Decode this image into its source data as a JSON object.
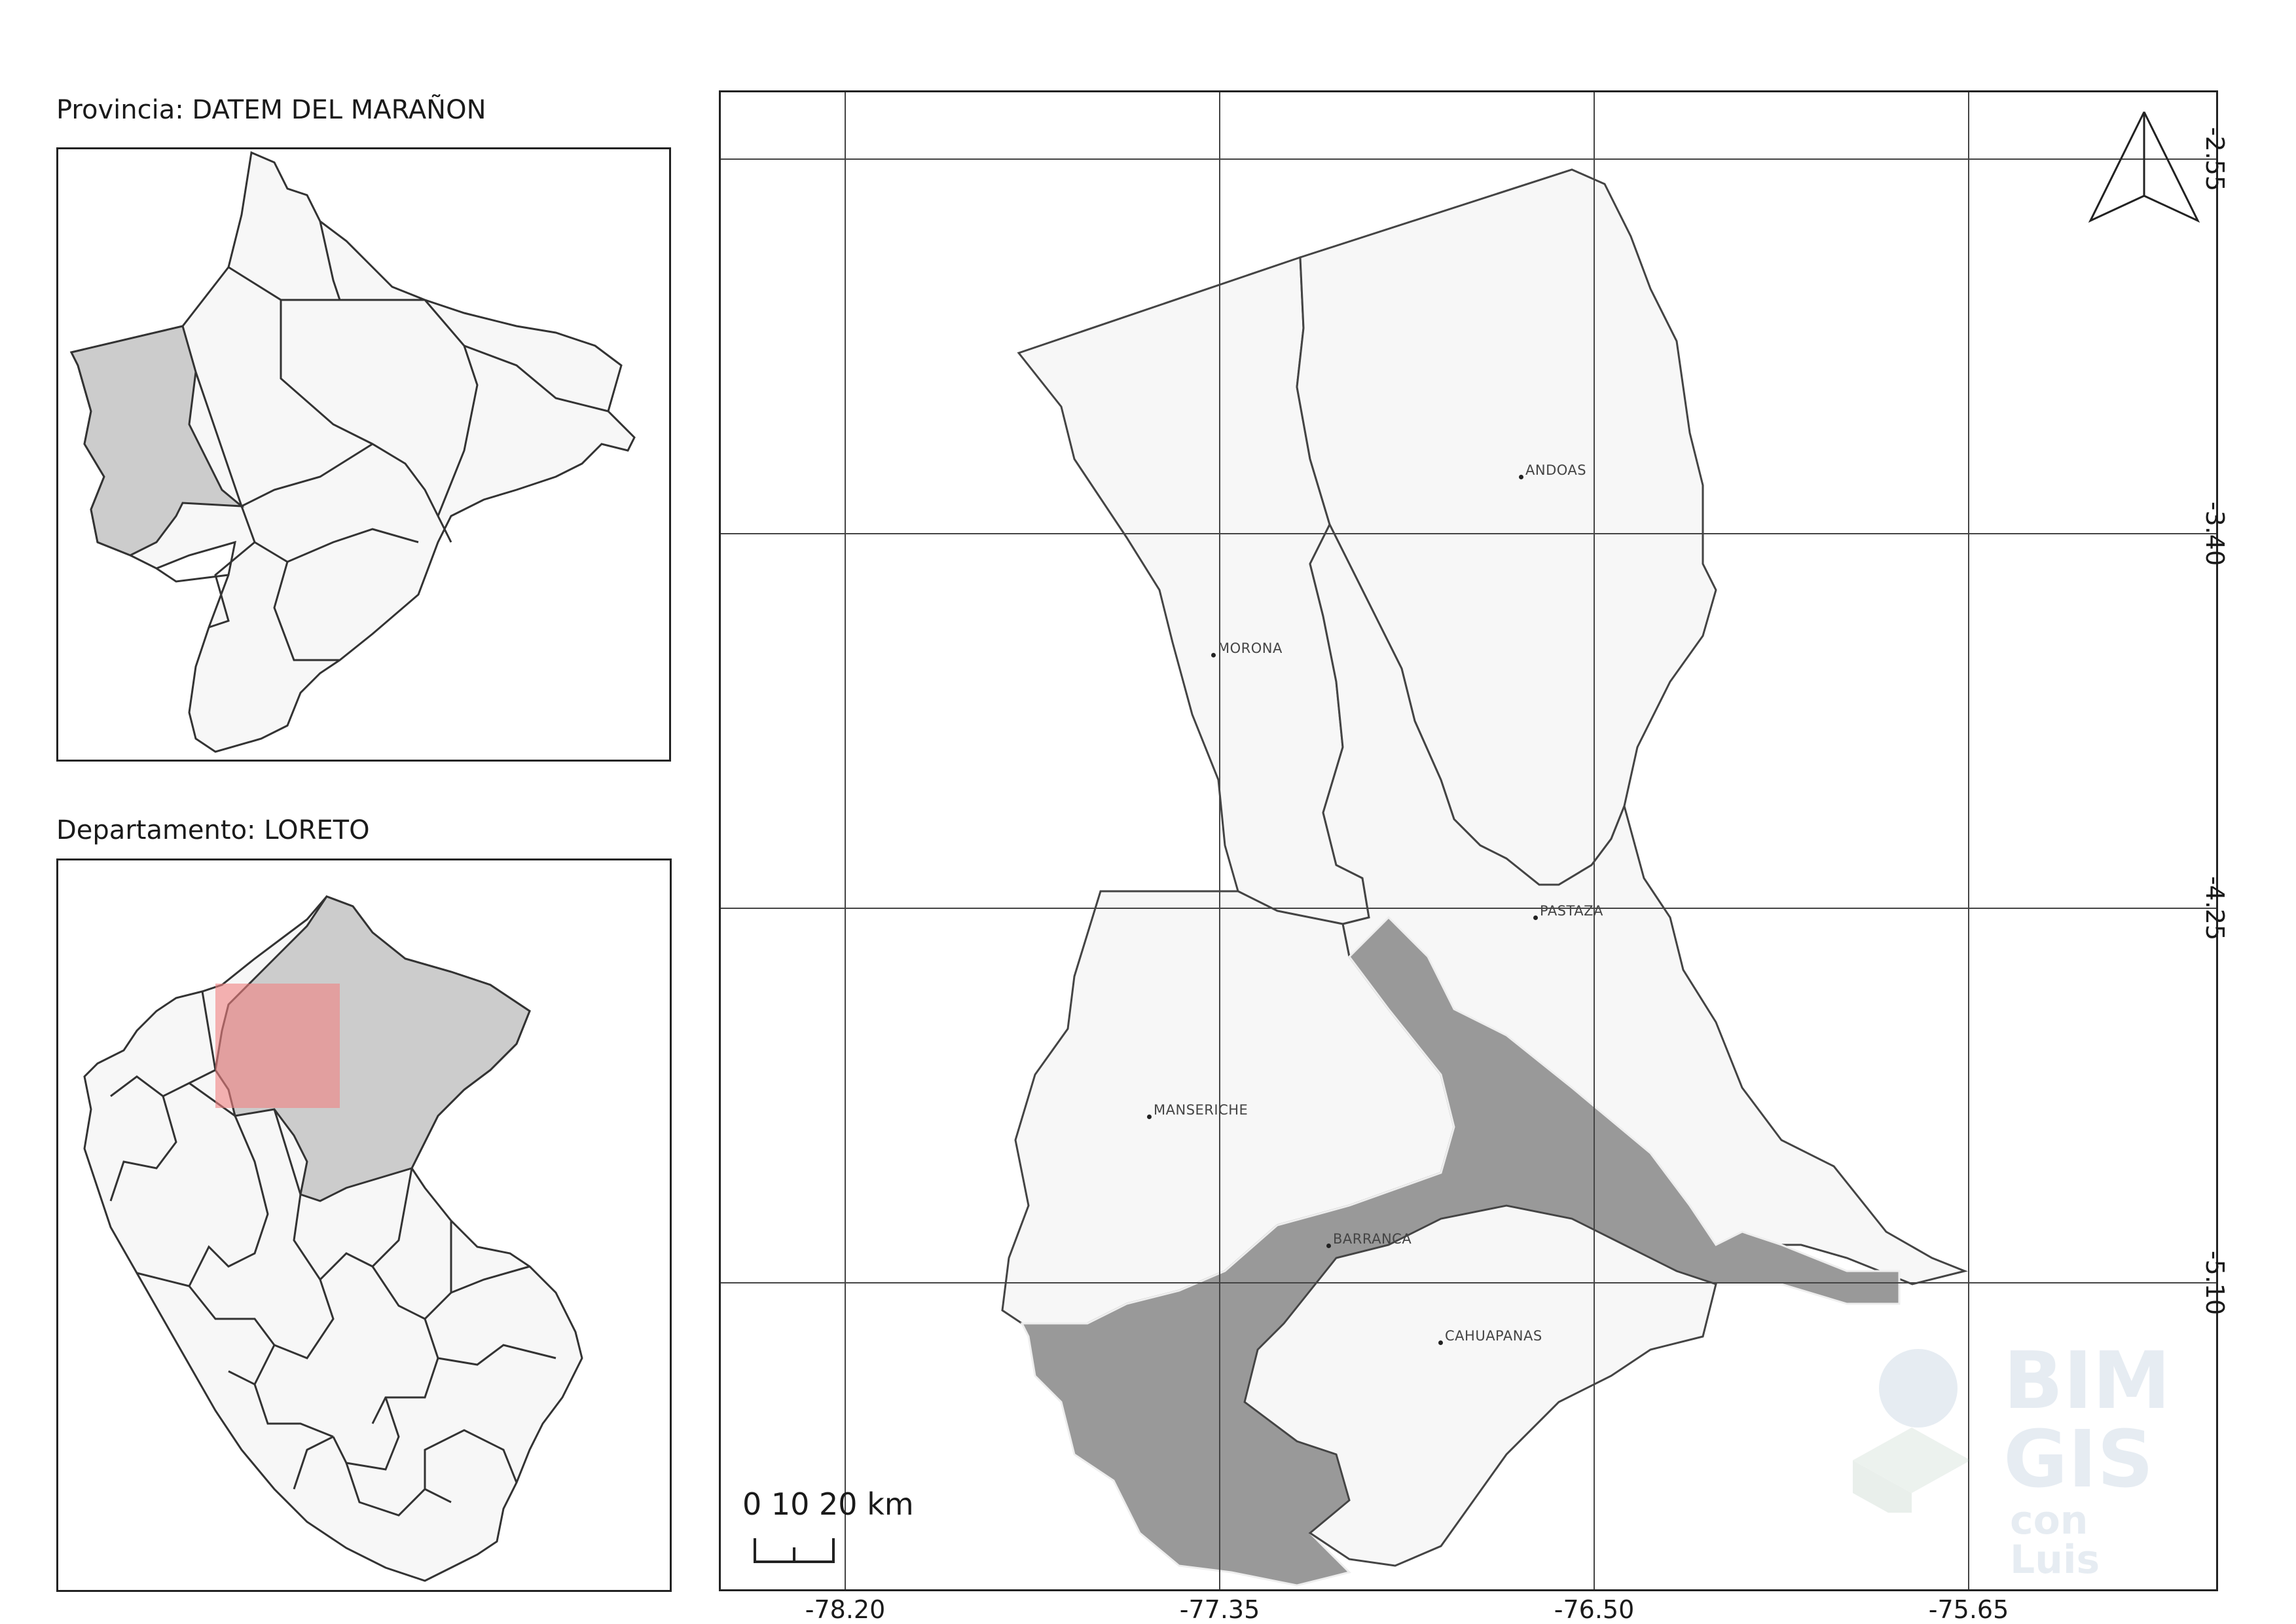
{
  "insets": {
    "province_title": "Provincia: DATEM DEL MARAÑON",
    "department_title": "Departamento: LORETO"
  },
  "main_map": {
    "x_ticks": [
      "-78.20",
      "-77.35",
      "-76.50",
      "-75.65"
    ],
    "y_ticks": [
      "-2.55",
      "-3.40",
      "-4.25",
      "-5.10"
    ],
    "places": [
      {
        "name": "ANDOAS"
      },
      {
        "name": "MORONA"
      },
      {
        "name": "PASTAZA"
      },
      {
        "name": "MANSERICHE"
      },
      {
        "name": "BARRANCA"
      },
      {
        "name": "CAHUAPANAS"
      }
    ],
    "scale_bar": "0  10 20 km"
  },
  "watermark": {
    "line1": "BIM",
    "line2": "GIS",
    "line3": "con Luis"
  },
  "colors": {
    "district_fill": "#f7f7f7",
    "highlight_fill": "#cccccc",
    "dark_fill": "#999999",
    "extent_fill": "#f08080",
    "grid": "#444444"
  },
  "icons": [
    "north-arrow-icon"
  ]
}
